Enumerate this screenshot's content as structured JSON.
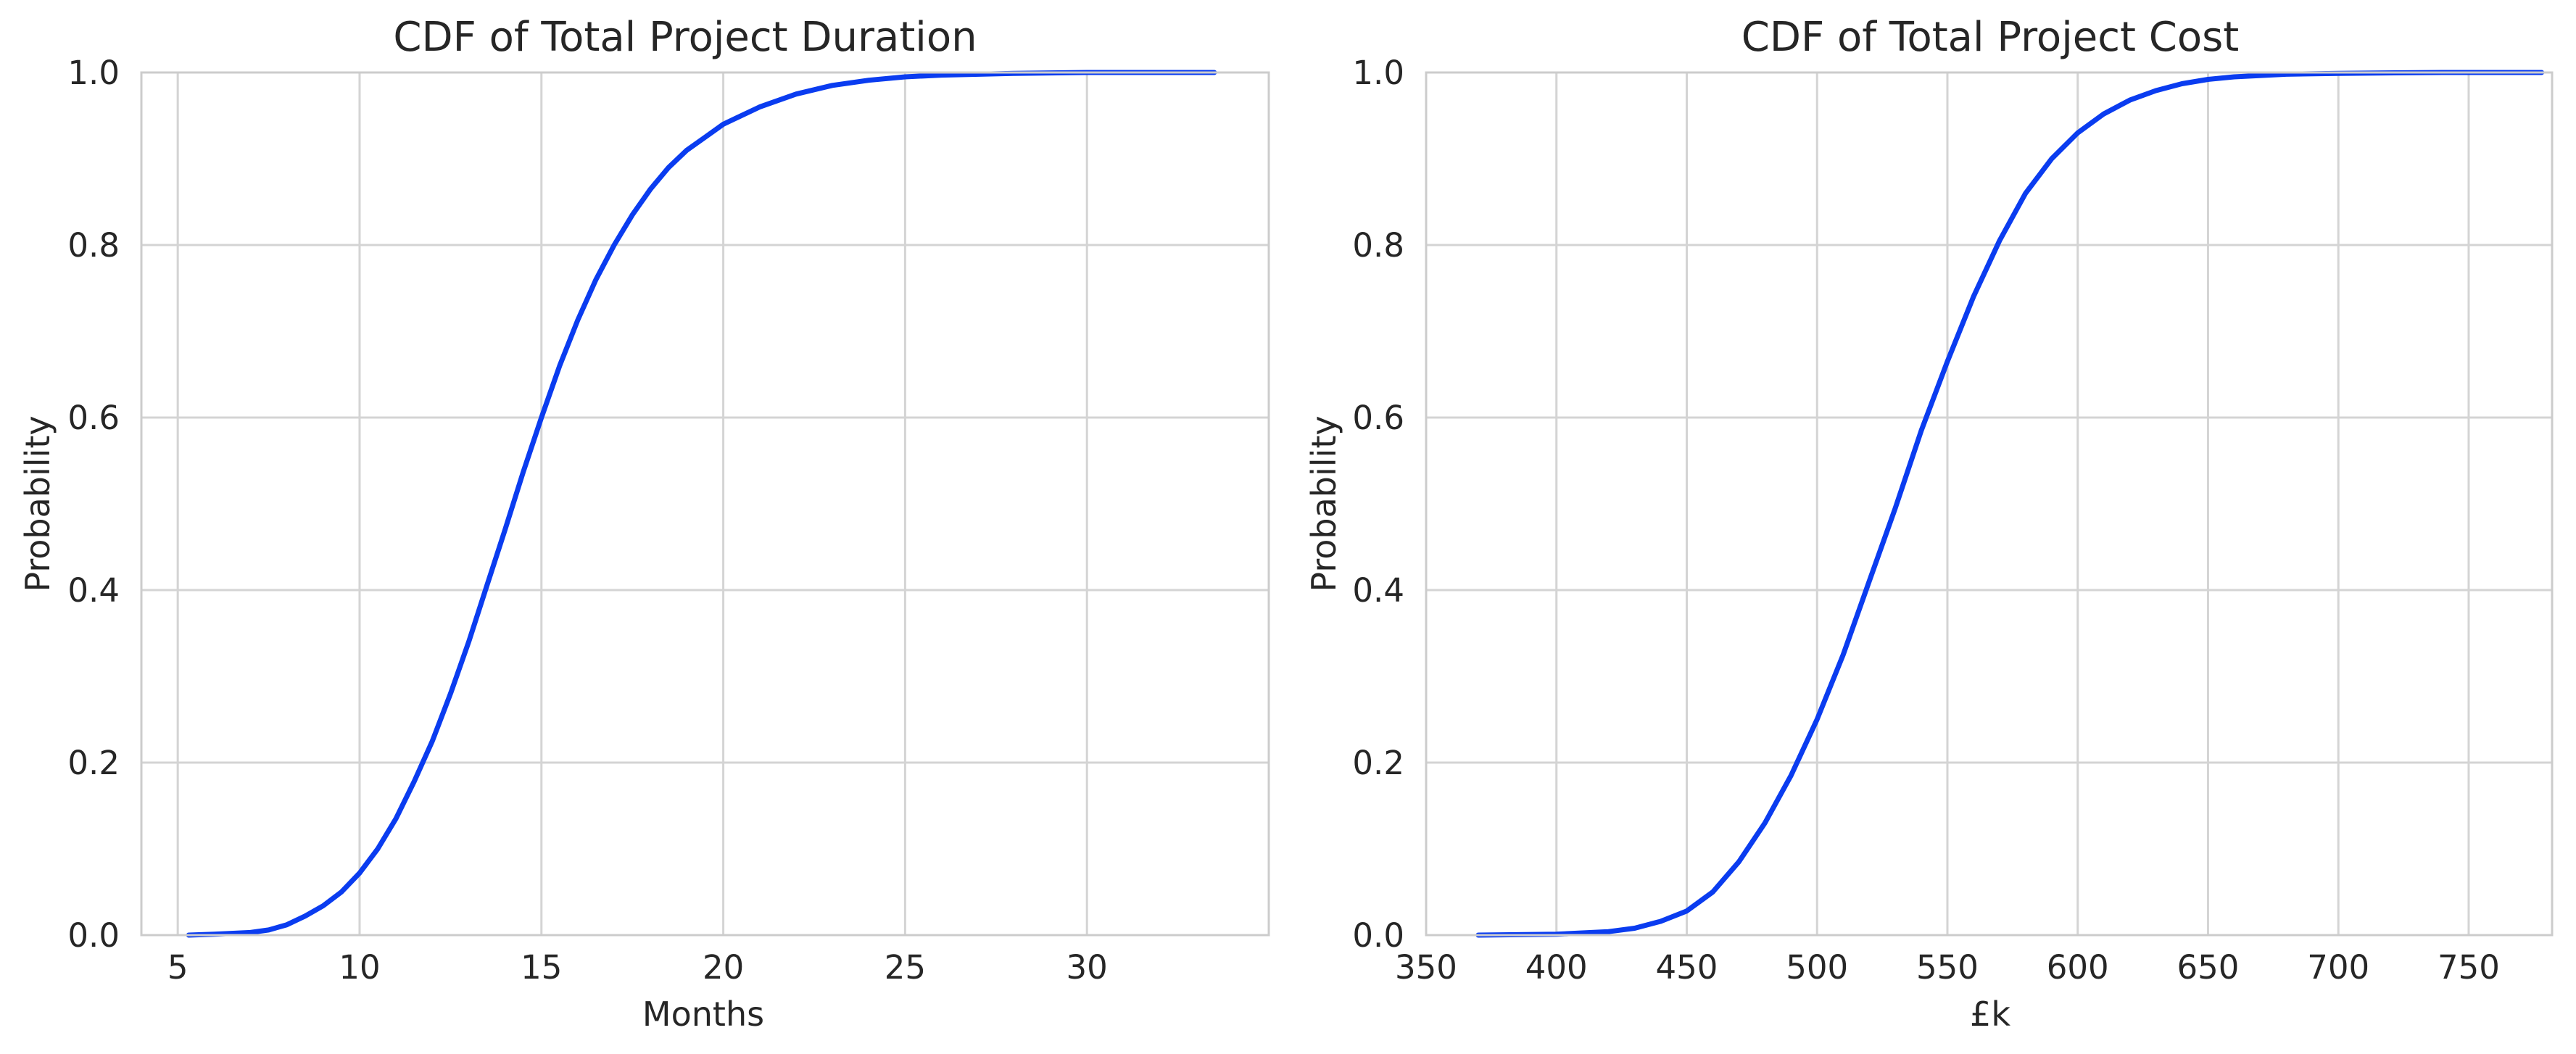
{
  "chart_data": [
    {
      "type": "line",
      "title": "CDF of Total Project Duration",
      "xlabel": "Months",
      "ylabel": "Probability",
      "xlim": [
        4,
        35
      ],
      "ylim": [
        0,
        1
      ],
      "xticks": [
        5,
        10,
        15,
        20,
        25,
        30
      ],
      "yticks": [
        0.0,
        0.2,
        0.4,
        0.6,
        0.8,
        1.0
      ],
      "grid": true,
      "series": [
        {
          "color": "#0a3cf0",
          "x": [
            5.3,
            6,
            7,
            7.5,
            8,
            8.5,
            9,
            9.5,
            10,
            10.5,
            11,
            11.5,
            12,
            12.5,
            13,
            13.5,
            14,
            14.5,
            15,
            15.5,
            16,
            16.5,
            17,
            17.5,
            18,
            18.5,
            19,
            19.5,
            20,
            21,
            22,
            23,
            24,
            25,
            26,
            28,
            30,
            33.5
          ],
          "y": [
            0.0,
            0.001,
            0.003,
            0.006,
            0.012,
            0.022,
            0.034,
            0.05,
            0.072,
            0.1,
            0.135,
            0.178,
            0.225,
            0.28,
            0.34,
            0.405,
            0.47,
            0.537,
            0.6,
            0.66,
            0.713,
            0.76,
            0.8,
            0.835,
            0.865,
            0.89,
            0.91,
            0.925,
            0.94,
            0.96,
            0.975,
            0.985,
            0.991,
            0.995,
            0.997,
            0.999,
            1.0,
            1.0
          ]
        }
      ]
    },
    {
      "type": "line",
      "title": "CDF of Total Project Cost",
      "xlabel": "£k",
      "ylabel": "Probability",
      "xlim": [
        350,
        782
      ],
      "ylim": [
        0,
        1
      ],
      "xticks": [
        350,
        400,
        450,
        500,
        550,
        600,
        650,
        700,
        750
      ],
      "yticks": [
        0.0,
        0.2,
        0.4,
        0.6,
        0.8,
        1.0
      ],
      "grid": true,
      "series": [
        {
          "color": "#0a3cf0",
          "x": [
            370,
            400,
            420,
            430,
            440,
            450,
            460,
            470,
            480,
            490,
            500,
            510,
            520,
            530,
            540,
            550,
            560,
            570,
            580,
            590,
            600,
            610,
            620,
            630,
            640,
            650,
            660,
            680,
            700,
            740,
            778
          ],
          "y": [
            0.0,
            0.001,
            0.004,
            0.008,
            0.016,
            0.028,
            0.05,
            0.085,
            0.13,
            0.185,
            0.25,
            0.325,
            0.41,
            0.495,
            0.585,
            0.665,
            0.74,
            0.805,
            0.86,
            0.9,
            0.93,
            0.952,
            0.968,
            0.979,
            0.987,
            0.992,
            0.995,
            0.998,
            0.999,
            1.0,
            1.0
          ]
        }
      ]
    }
  ]
}
